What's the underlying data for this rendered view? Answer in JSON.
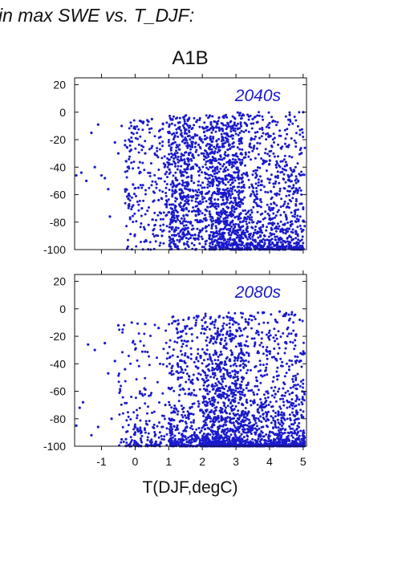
{
  "figure": {
    "title": "in max SWE vs. T_DJF:",
    "scenario": "A1B"
  },
  "colors": {
    "points": "#1a1acc",
    "axis": "#111111"
  },
  "chart_data": [
    {
      "type": "scatter",
      "label": "2040s",
      "xlabel": "",
      "ylabel": "",
      "xlim": [
        -1.8,
        5.1
      ],
      "ylim": [
        -100,
        25
      ],
      "yticks": [
        20,
        0,
        -20,
        -40,
        -60,
        -80,
        -100
      ],
      "xticks": [
        -1,
        0,
        1,
        2,
        3,
        4,
        5
      ],
      "show_x_tick_labels": false,
      "grid": false,
      "series": [
        {
          "marker": "dot",
          "points": [
            [
              -1.75,
              -46
            ],
            [
              -1.6,
              -44
            ],
            [
              -1.45,
              -50
            ],
            [
              -1.3,
              -15
            ],
            [
              -1.2,
              -40
            ],
            [
              -1.1,
              -9
            ],
            [
              -1.0,
              -46
            ],
            [
              -0.9,
              -48
            ],
            [
              -0.8,
              -56
            ],
            [
              -0.75,
              -76
            ],
            [
              -0.6,
              -22
            ],
            [
              -0.5,
              -30
            ],
            [
              -0.4,
              -10
            ],
            [
              -0.3,
              -24
            ],
            [
              -0.2,
              -63
            ],
            [
              0.0,
              -12
            ],
            [
              0.1,
              -55
            ],
            [
              0.2,
              -70
            ],
            [
              0.3,
              -30
            ],
            [
              0.4,
              -82
            ],
            [
              0.5,
              -5
            ],
            [
              0.7,
              -64
            ],
            [
              0.8,
              -90
            ],
            [
              0.9,
              -45
            ],
            [
              1.0,
              -15
            ],
            [
              1.2,
              -98
            ],
            [
              1.4,
              -35
            ],
            [
              1.6,
              -72
            ],
            [
              1.8,
              -100
            ],
            [
              2.0,
              -55
            ],
            [
              2.3,
              -3
            ],
            [
              2.6,
              -88
            ],
            [
              2.9,
              -10
            ],
            [
              3.2,
              -95
            ],
            [
              3.5,
              -5
            ],
            [
              3.7,
              -100
            ],
            [
              4.0,
              -8
            ],
            [
              4.3,
              -100
            ],
            [
              4.6,
              -2
            ],
            [
              4.9,
              -100
            ],
            [
              5.0,
              0
            ]
          ],
          "cloud": [
            {
              "n": 350,
              "x": [
                -0.3,
                1.6
              ],
              "y": [
                -100,
                -5
              ],
              "bias": 0.0
            },
            {
              "n": 900,
              "x": [
                1.0,
                3.2
              ],
              "y": [
                -100,
                -2
              ],
              "bias": 0.0
            },
            {
              "n": 1200,
              "x": [
                2.2,
                5.05
              ],
              "y": [
                -100,
                0
              ],
              "bias": 0.45
            }
          ]
        }
      ]
    },
    {
      "type": "scatter",
      "label": "2080s",
      "xlabel": "T(DJF,degC)",
      "ylabel": "",
      "xlim": [
        -1.8,
        5.1
      ],
      "ylim": [
        -100,
        25
      ],
      "yticks": [
        20,
        0,
        -20,
        -40,
        -60,
        -80,
        -100
      ],
      "xticks": [
        -1,
        0,
        1,
        2,
        3,
        4,
        5
      ],
      "show_x_tick_labels": true,
      "grid": false,
      "series": [
        {
          "marker": "dot",
          "points": [
            [
              -1.75,
              -85
            ],
            [
              -1.65,
              -72
            ],
            [
              -1.55,
              -68
            ],
            [
              -1.4,
              -26
            ],
            [
              -1.3,
              -92
            ],
            [
              -1.2,
              -30
            ],
            [
              -1.1,
              -86
            ],
            [
              -0.9,
              -25
            ],
            [
              -0.8,
              -47
            ],
            [
              -0.7,
              -80
            ],
            [
              -0.6,
              -38
            ],
            [
              -0.5,
              -12
            ],
            [
              -0.4,
              -95
            ],
            [
              -0.3,
              -44
            ],
            [
              -0.1,
              -10
            ],
            [
              0.0,
              -90
            ],
            [
              0.2,
              -62
            ],
            [
              0.3,
              -11
            ],
            [
              0.5,
              -97
            ],
            [
              0.7,
              -14
            ],
            [
              0.9,
              -70
            ],
            [
              1.2,
              -9
            ],
            [
              1.5,
              -100
            ],
            [
              1.8,
              -12
            ],
            [
              2.1,
              -100
            ],
            [
              2.5,
              -6
            ],
            [
              2.8,
              -100
            ],
            [
              3.1,
              -14
            ],
            [
              3.4,
              -100
            ],
            [
              3.8,
              -3
            ],
            [
              4.1,
              -100
            ],
            [
              4.3,
              -2
            ],
            [
              4.6,
              -100
            ],
            [
              4.9,
              -8
            ],
            [
              5.0,
              -100
            ]
          ],
          "cloud": [
            {
              "n": 250,
              "x": [
                -0.5,
                1.6
              ],
              "y": [
                -100,
                -10
              ],
              "bias": 0.55
            },
            {
              "n": 800,
              "x": [
                1.0,
                3.3
              ],
              "y": [
                -100,
                -5
              ],
              "bias": 0.6
            },
            {
              "n": 1400,
              "x": [
                2.0,
                5.05
              ],
              "y": [
                -100,
                -2
              ],
              "bias": 0.75
            }
          ]
        }
      ]
    }
  ]
}
